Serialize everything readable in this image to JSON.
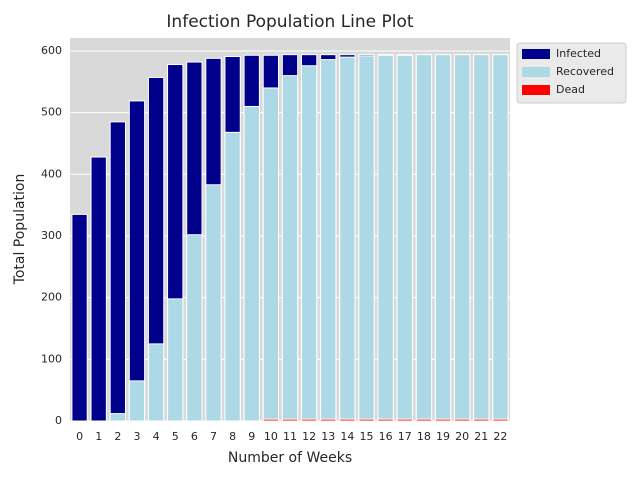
{
  "chart_data": {
    "type": "bar",
    "overlap": true,
    "title": "Infection Population Line Plot",
    "x_label": "Number of Weeks",
    "y_label": "Total Population",
    "categories": [
      "0",
      "1",
      "2",
      "3",
      "4",
      "5",
      "6",
      "7",
      "8",
      "9",
      "10",
      "11",
      "12",
      "13",
      "14",
      "15",
      "16",
      "17",
      "18",
      "19",
      "20",
      "21",
      "22"
    ],
    "series": [
      {
        "name": "Infected",
        "color": "#00008b",
        "values": [
          335,
          428,
          485,
          519,
          557,
          578,
          582,
          588,
          591,
          593,
          593,
          594,
          594,
          594,
          594,
          594,
          594,
          594,
          594,
          594,
          594,
          594,
          594
        ]
      },
      {
        "name": "Recovered",
        "color": "#add8e6",
        "values": [
          0,
          0,
          12,
          65,
          125,
          198,
          302,
          383,
          468,
          510,
          540,
          560,
          576,
          586,
          590,
          592,
          593,
          593,
          594,
          594,
          594,
          594,
          594
        ]
      },
      {
        "name": "Dead",
        "color": "#ff0000",
        "values": [
          0,
          0,
          0,
          0,
          0,
          0,
          0,
          0,
          0,
          0,
          3,
          3,
          3,
          3,
          3,
          3,
          3,
          3,
          3,
          3,
          3,
          3,
          3
        ]
      }
    ],
    "ylim": [
      0,
      621
    ],
    "yticks": [
      0,
      100,
      200,
      300,
      400,
      500,
      600
    ],
    "grid": true,
    "legend": "upper-right-outside"
  }
}
